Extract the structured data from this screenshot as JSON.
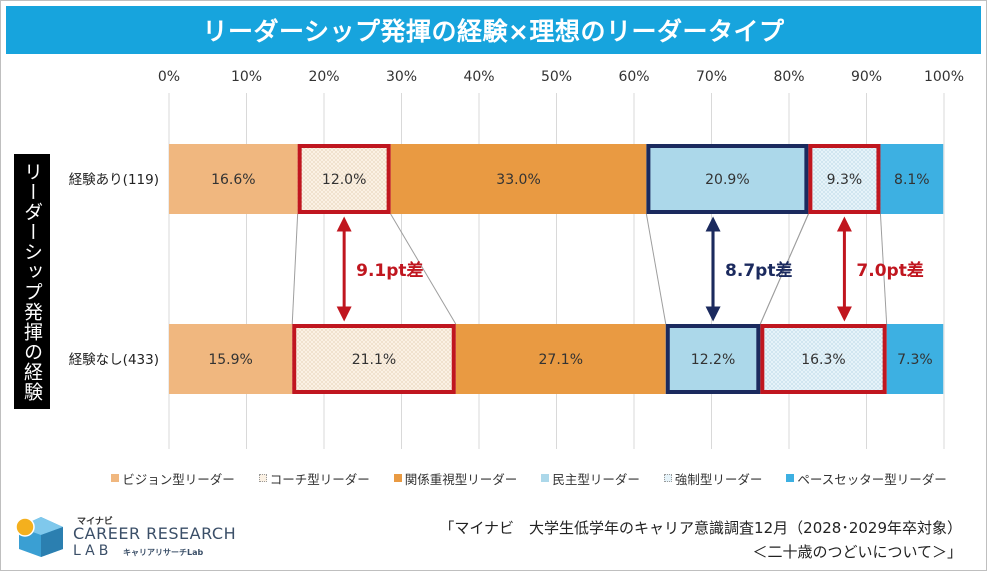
{
  "title": "リーダーシップ発揮の経験×理想のリーダータイプ",
  "side_label": "リーダーシップ発揮の経験",
  "colors": {
    "title_bg": "#17a4dd",
    "vision": "#f0b77f",
    "coach": "#fbf1e4",
    "relation": "#e99a42",
    "democratic": "#acd8ea",
    "coercive": "#e6f3f9",
    "pacesetter": "#3db0e2",
    "highlight_red": "#c0161f",
    "highlight_navy": "#1b2a5e",
    "grid": "#d9d9d9",
    "connector": "#9e9e9e"
  },
  "chart_data": {
    "type": "bar",
    "orientation": "horizontal",
    "stacked": true,
    "percent_stacked": true,
    "xlim": [
      0,
      100
    ],
    "x_ticks": [
      "0%",
      "10%",
      "20%",
      "30%",
      "40%",
      "50%",
      "60%",
      "70%",
      "80%",
      "90%",
      "100%"
    ],
    "categories": [
      "経験あり(119)",
      "経験なし(433)"
    ],
    "series": [
      {
        "name": "ビジョン型リーダー",
        "key": "vision",
        "values": [
          16.6,
          15.9
        ],
        "labels": [
          "16.6%",
          "15.9%"
        ]
      },
      {
        "name": "コーチ型リーダー",
        "key": "coach",
        "values": [
          12.0,
          21.1
        ],
        "labels": [
          "12.0%",
          "21.1%"
        ],
        "highlight": "red"
      },
      {
        "name": "関係重視型リーダー",
        "key": "relation",
        "values": [
          33.0,
          27.1
        ],
        "labels": [
          "33.0%",
          "27.1%"
        ]
      },
      {
        "name": "民主型リーダー",
        "key": "democratic",
        "values": [
          20.9,
          12.2
        ],
        "labels": [
          "20.9%",
          "12.2%"
        ],
        "highlight": "navy"
      },
      {
        "name": "強制型リーダー",
        "key": "coercive",
        "values": [
          9.3,
          16.3
        ],
        "labels": [
          "9.3%",
          "16.3%"
        ],
        "highlight": "red"
      },
      {
        "name": "ペースセッター型リーダー",
        "key": "pacesetter",
        "values": [
          8.1,
          7.3
        ],
        "labels": [
          "8.1%",
          "7.3%"
        ]
      }
    ],
    "annotations": [
      {
        "text": "9.1pt差",
        "series": "coach",
        "color": "red"
      },
      {
        "text": "8.7pt差",
        "series": "democratic",
        "color": "navy"
      },
      {
        "text": "7.0pt差",
        "series": "coercive",
        "color": "red"
      }
    ],
    "legend_position": "bottom"
  },
  "logo": {
    "brand": "マイナビ",
    "line1": "CAREER RESEARCH",
    "line2": "LAB",
    "sub": "キャリアリサーチLab"
  },
  "source": {
    "line1": "「マイナビ　大学生低学年のキャリア意識調査12月（2028･2029年卒対象）",
    "line2": "＜二十歳のつどいについて＞」"
  }
}
